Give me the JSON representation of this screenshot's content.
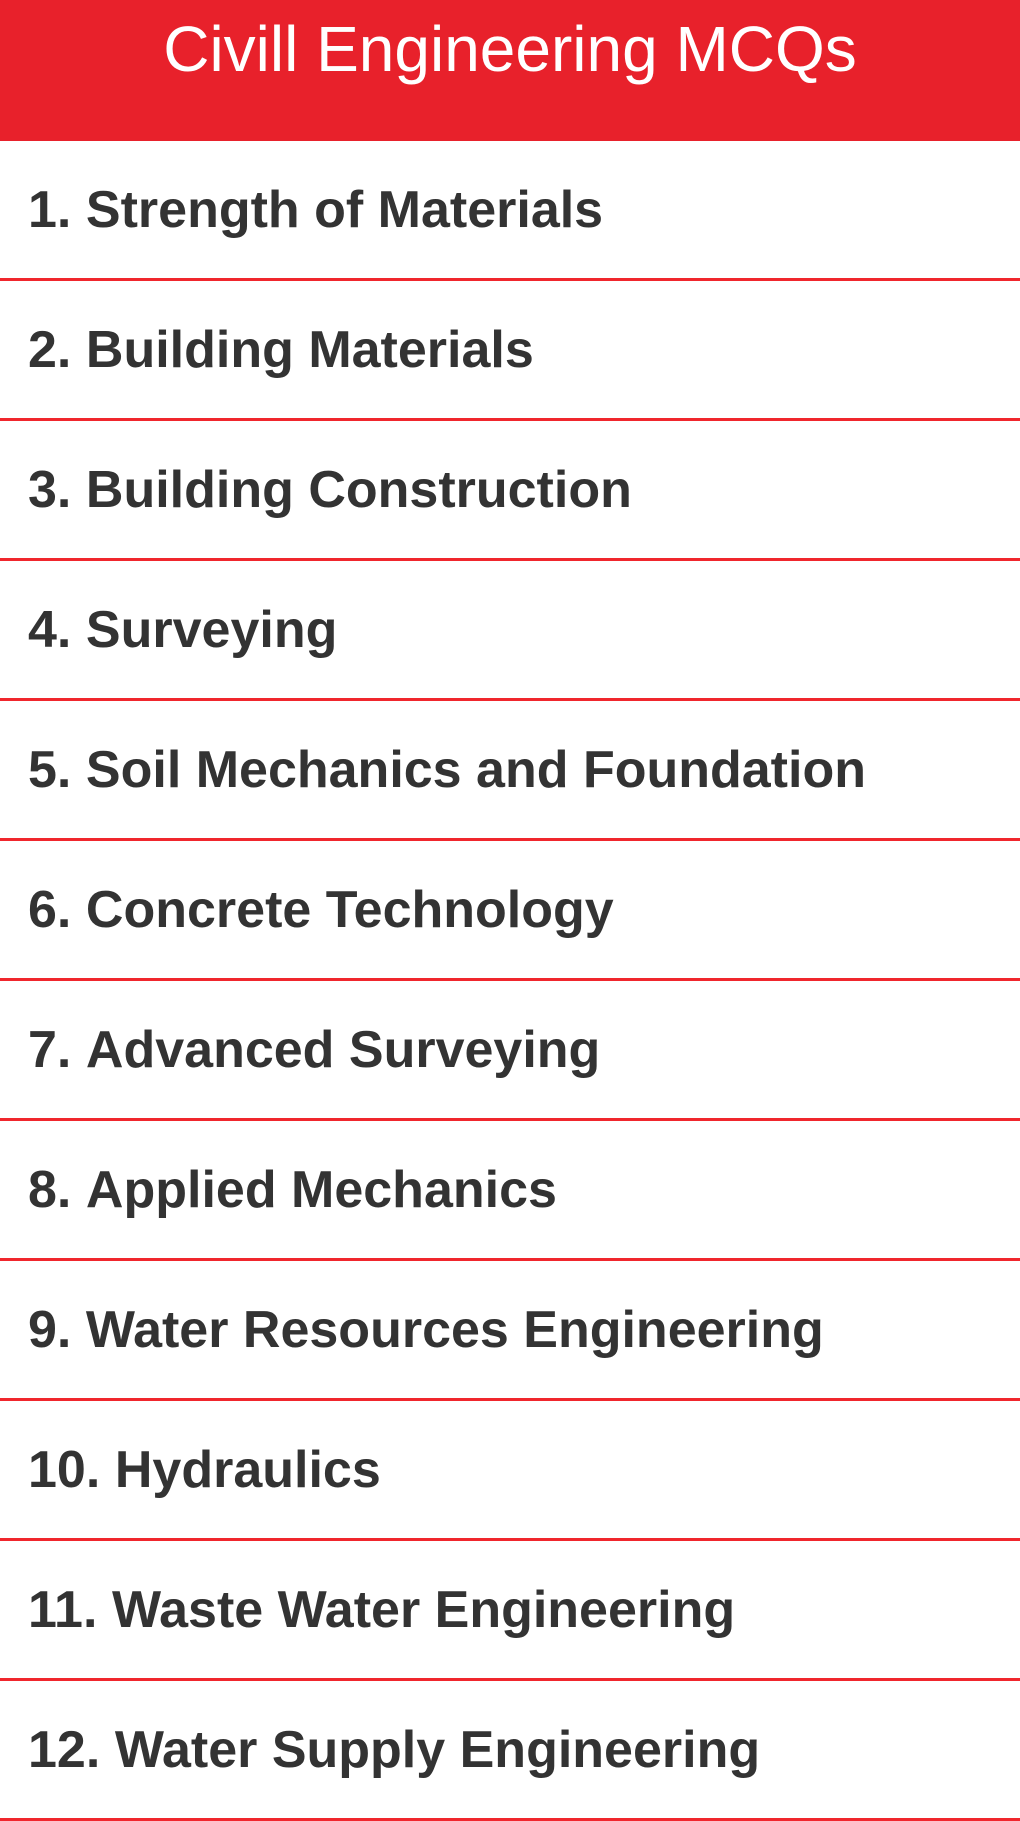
{
  "header": {
    "title": "Civill Engineering MCQs"
  },
  "list": {
    "items": [
      {
        "number": "1.",
        "label": "Strength of Materials"
      },
      {
        "number": "2.",
        "label": "Building Materials"
      },
      {
        "number": "3.",
        "label": "Building Construction"
      },
      {
        "number": "4.",
        "label": "Surveying"
      },
      {
        "number": "5.",
        "label": "Soil Mechanics and Foundation"
      },
      {
        "number": "6.",
        "label": "Concrete Technology"
      },
      {
        "number": "7.",
        "label": "Advanced Surveying"
      },
      {
        "number": "8.",
        "label": "Applied Mechanics"
      },
      {
        "number": "9.",
        "label": "Water Resources Engineering"
      },
      {
        "number": "10.",
        "label": "Hydraulics"
      },
      {
        "number": "11.",
        "label": "Waste Water Engineering"
      },
      {
        "number": "12.",
        "label": "Water Supply Engineering"
      }
    ]
  },
  "colors": {
    "header_background": "#e8212b",
    "separator": "#f0262d",
    "item_text": "#333333",
    "title_text": "#ffffff"
  }
}
